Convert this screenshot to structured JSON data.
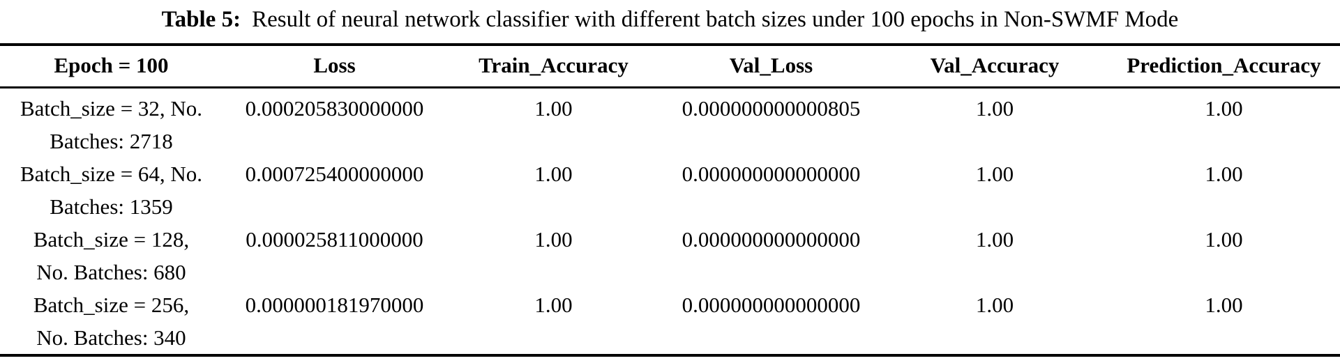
{
  "caption": {
    "label": "Table 5:",
    "text": "Result of neural network classifier with different batch sizes under 100 epochs in Non-SWMF Mode"
  },
  "table": {
    "headers": [
      "Epoch = 100",
      "Loss",
      "Train_Accuracy",
      "Val_Loss",
      "Val_Accuracy",
      "Prediction_Accuracy"
    ],
    "rows": [
      {
        "label_line1": "Batch_size = 32, No.",
        "label_line2": "Batches: 2718",
        "loss": "0.000205830000000",
        "train_accuracy": "1.00",
        "val_loss": "0.000000000000805",
        "val_accuracy": "1.00",
        "prediction_accuracy": "1.00"
      },
      {
        "label_line1": "Batch_size = 64, No.",
        "label_line2": "Batches: 1359",
        "loss": "0.000725400000000",
        "train_accuracy": "1.00",
        "val_loss": "0.000000000000000",
        "val_accuracy": "1.00",
        "prediction_accuracy": "1.00"
      },
      {
        "label_line1": "Batch_size = 128,",
        "label_line2": "No. Batches: 680",
        "loss": "0.000025811000000",
        "train_accuracy": "1.00",
        "val_loss": "0.000000000000000",
        "val_accuracy": "1.00",
        "prediction_accuracy": "1.00"
      },
      {
        "label_line1": "Batch_size = 256,",
        "label_line2": "No. Batches: 340",
        "loss": "0.000000181970000",
        "train_accuracy": "1.00",
        "val_loss": "0.000000000000000",
        "val_accuracy": "1.00",
        "prediction_accuracy": "1.00"
      }
    ]
  },
  "colors": {
    "background": "#ffffff",
    "text": "#000000",
    "rule": "#000000"
  }
}
